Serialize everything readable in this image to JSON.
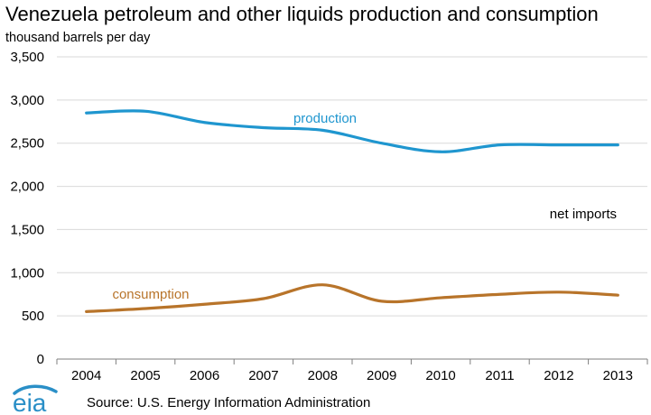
{
  "chart_data": {
    "type": "line",
    "title": "Venezuela petroleum and other liquids production and consumption",
    "ylabel": "thousand barrels per day",
    "xlabel": "",
    "x": [
      "2004",
      "2005",
      "2006",
      "2007",
      "2008",
      "2009",
      "2010",
      "2011",
      "2012",
      "2013"
    ],
    "ylim": [
      0,
      3500
    ],
    "yticks": [
      0,
      500,
      1000,
      1500,
      2000,
      2500,
      3000,
      3500
    ],
    "ytick_labels": [
      "0",
      "500",
      "1,000",
      "1,500",
      "2,000",
      "2,500",
      "3,000",
      "3,500"
    ],
    "grid": true,
    "series": [
      {
        "name": "production",
        "color": "#1f96cf",
        "values": [
          2850,
          2870,
          2740,
          2680,
          2650,
          2500,
          2400,
          2480,
          2480,
          2480
        ]
      },
      {
        "name": "consumption",
        "color": "#b8742a",
        "values": [
          550,
          585,
          635,
          700,
          860,
          670,
          710,
          750,
          775,
          740
        ]
      }
    ],
    "annotations": [
      {
        "text": "net imports",
        "x": "2013",
        "y": 1700
      }
    ]
  },
  "footer": {
    "source": "Source:  U.S. Energy Information Administration",
    "logo_text": "eia",
    "logo_color": "#2a8fc7"
  }
}
